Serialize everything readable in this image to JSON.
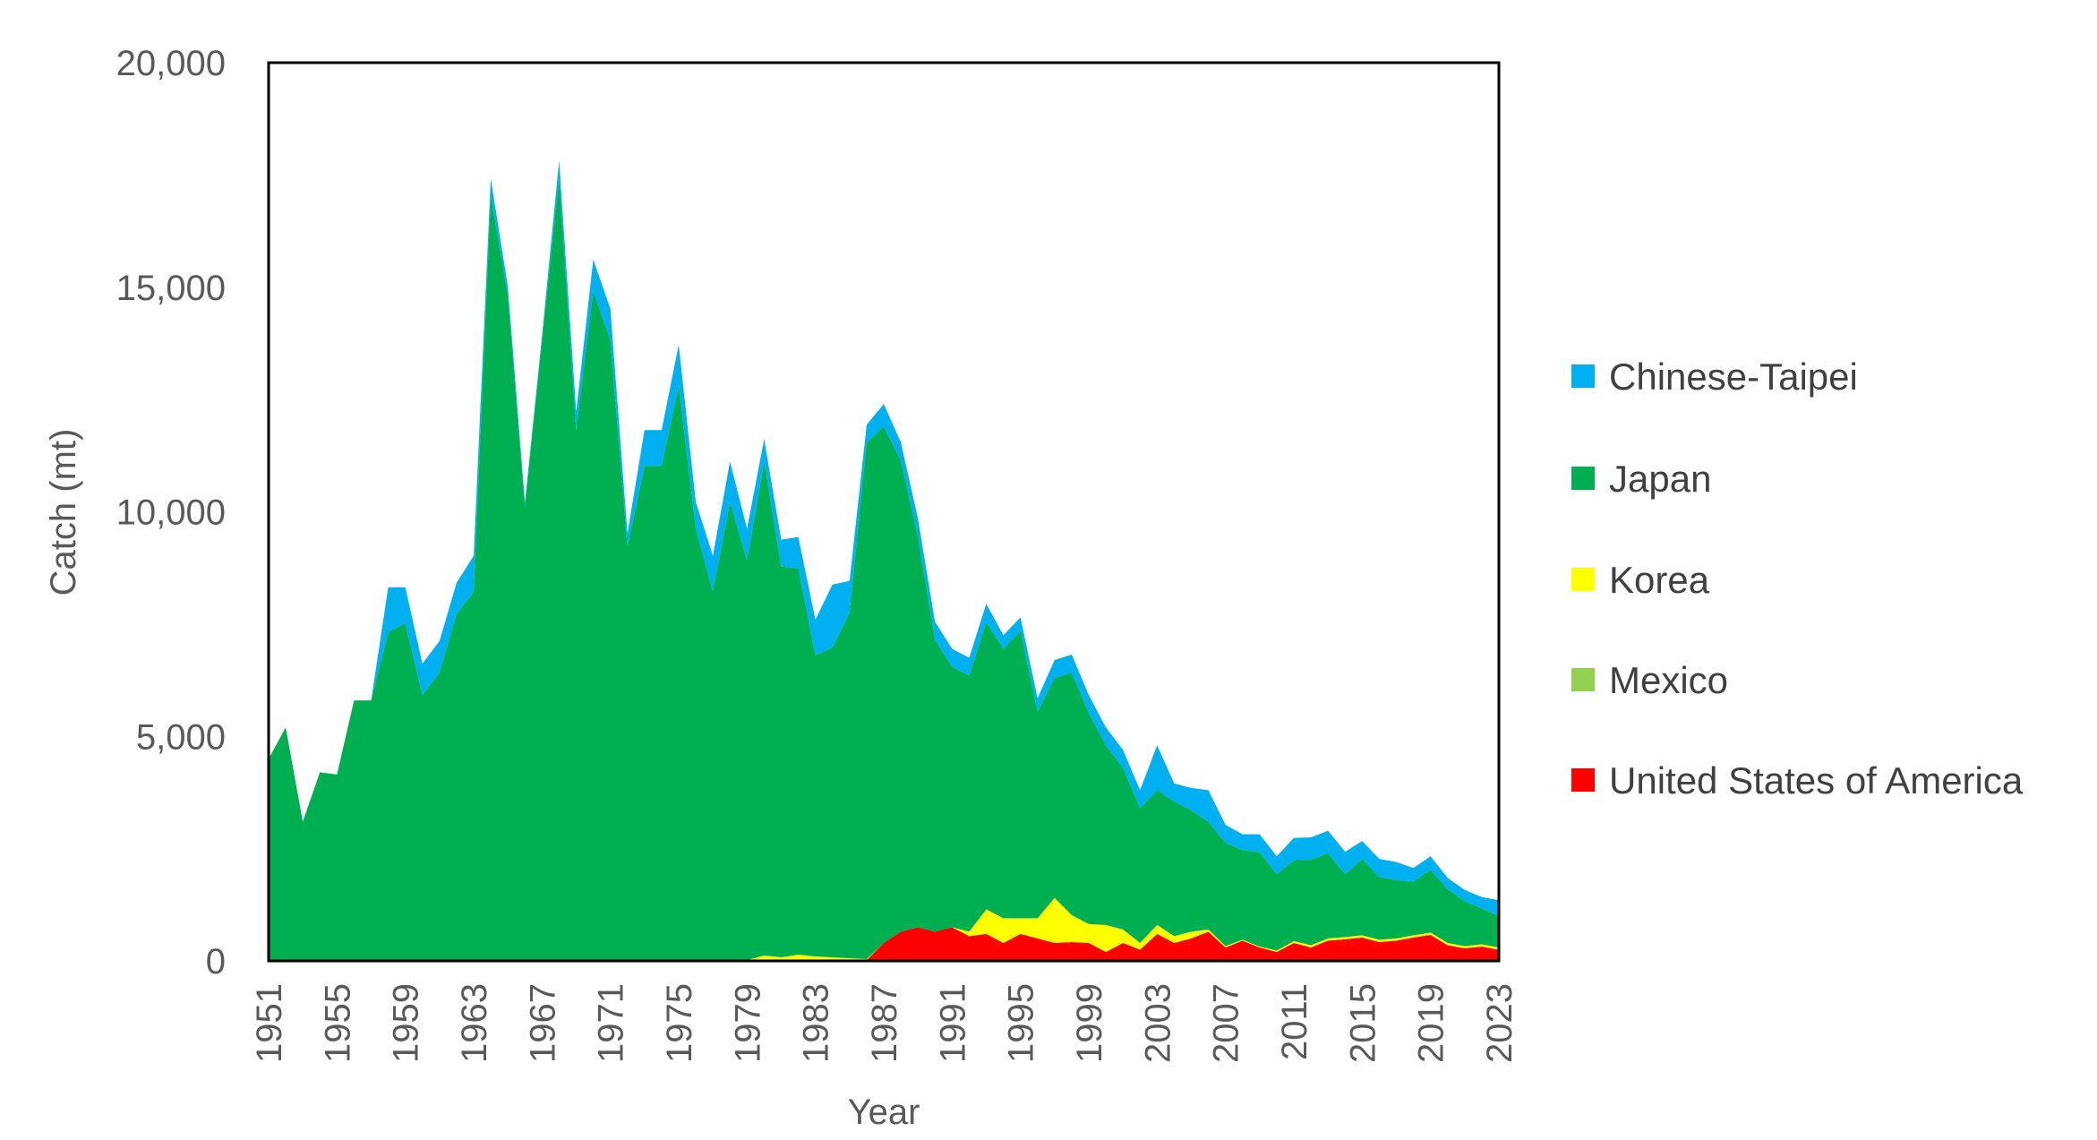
{
  "chart_data": {
    "type": "area",
    "stacked": true,
    "title": "",
    "xlabel": "Year",
    "ylabel": "Catch (mt)",
    "ylim": [
      0,
      20000
    ],
    "yticks": [
      0,
      5000,
      10000,
      15000,
      20000
    ],
    "ytick_labels": [
      "0",
      "5,000",
      "10,000",
      "15,000",
      "20,000"
    ],
    "x_start": 1951,
    "x_end": 2023,
    "xtick_labels": [
      "1951",
      "1955",
      "1959",
      "1963",
      "1967",
      "1971",
      "1975",
      "1979",
      "1983",
      "1987",
      "1991",
      "1995",
      "1999",
      "2003",
      "2007",
      "2011",
      "2015",
      "2019",
      "2023"
    ],
    "legend_position": "right",
    "grid": false,
    "series": [
      {
        "name": "United States of America",
        "color": "#ff0000",
        "values": [
          0,
          0,
          0,
          0,
          0,
          0,
          0,
          20,
          20,
          20,
          20,
          20,
          20,
          20,
          20,
          20,
          20,
          20,
          20,
          20,
          20,
          20,
          20,
          20,
          20,
          20,
          20,
          20,
          20,
          20,
          20,
          20,
          20,
          20,
          20,
          20,
          400,
          650,
          750,
          650,
          750,
          550,
          600,
          400,
          600,
          500,
          400,
          420,
          400,
          200,
          400,
          250,
          600,
          400,
          500,
          650,
          300,
          450,
          300,
          200,
          400,
          300,
          450,
          480,
          520,
          420,
          450,
          520,
          580,
          350,
          280,
          320,
          250
        ]
      },
      {
        "name": "Mexico",
        "color": "#92d050",
        "values": [
          0,
          0,
          0,
          0,
          0,
          0,
          0,
          0,
          0,
          0,
          0,
          0,
          0,
          0,
          0,
          0,
          0,
          0,
          0,
          0,
          0,
          0,
          0,
          0,
          0,
          0,
          0,
          0,
          0,
          0,
          0,
          0,
          0,
          0,
          0,
          0,
          0,
          0,
          0,
          0,
          0,
          0,
          0,
          0,
          0,
          0,
          0,
          0,
          0,
          0,
          0,
          0,
          0,
          0,
          0,
          0,
          0,
          0,
          0,
          0,
          0,
          0,
          0,
          0,
          0,
          0,
          0,
          0,
          0,
          0,
          0,
          0,
          0
        ]
      },
      {
        "name": "Korea",
        "color": "#ffff00",
        "values": [
          0,
          0,
          0,
          0,
          0,
          0,
          0,
          0,
          0,
          0,
          0,
          0,
          0,
          0,
          0,
          0,
          0,
          0,
          0,
          0,
          0,
          0,
          0,
          0,
          0,
          0,
          0,
          0,
          0,
          100,
          60,
          120,
          80,
          60,
          40,
          20,
          0,
          0,
          0,
          0,
          0,
          100,
          550,
          550,
          350,
          450,
          1000,
          600,
          420,
          600,
          300,
          150,
          200,
          150,
          150,
          50,
          30,
          20,
          20,
          30,
          40,
          50,
          50,
          50,
          50,
          50,
          50,
          50,
          50,
          50,
          50,
          50,
          50
        ]
      },
      {
        "name": "Japan",
        "color": "#00b050",
        "values": [
          4500,
          5200,
          3100,
          4200,
          4150,
          5800,
          5800,
          7300,
          7500,
          5900,
          6400,
          7700,
          8200,
          17000,
          14800,
          10100,
          13800,
          17400,
          11800,
          14900,
          13800,
          9200,
          11000,
          11000,
          12800,
          9600,
          8200,
          10200,
          8900,
          11000,
          8700,
          8600,
          6700,
          6900,
          7700,
          11500,
          11500,
          10500,
          8700,
          6500,
          5800,
          5700,
          6400,
          6000,
          6400,
          4600,
          4900,
          5400,
          4700,
          4000,
          3600,
          3000,
          3000,
          3000,
          2700,
          2400,
          2300,
          2000,
          2100,
          1700,
          1800,
          1900,
          1900,
          1400,
          1700,
          1400,
          1300,
          1200,
          1400,
          1200,
          1000,
          800,
          700
        ]
      },
      {
        "name": "Chinese-Taipei",
        "color": "#00b0f0",
        "values": [
          0,
          0,
          0,
          0,
          0,
          0,
          0,
          1000,
          800,
          700,
          700,
          700,
          800,
          400,
          200,
          100,
          100,
          400,
          400,
          700,
          700,
          300,
          800,
          800,
          900,
          600,
          800,
          900,
          700,
          500,
          600,
          700,
          800,
          1400,
          700,
          400,
          500,
          400,
          400,
          400,
          400,
          400,
          400,
          300,
          300,
          300,
          400,
          400,
          400,
          400,
          400,
          400,
          1000,
          400,
          500,
          700,
          400,
          350,
          400,
          400,
          500,
          500,
          500,
          500,
          400,
          400,
          400,
          300,
          300,
          250,
          250,
          250,
          350
        ]
      }
    ]
  }
}
